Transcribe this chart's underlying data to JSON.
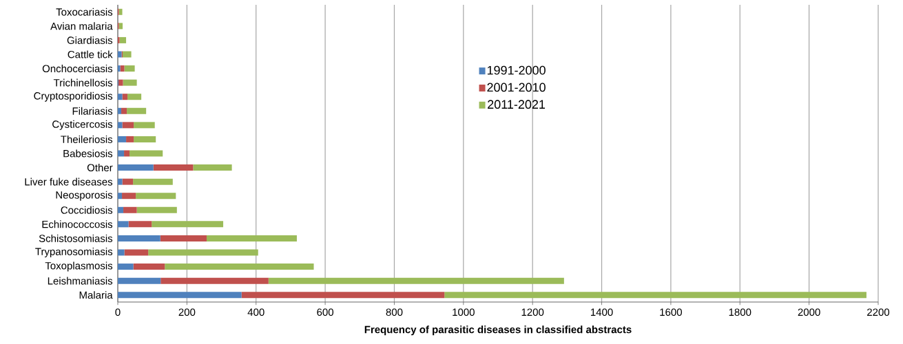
{
  "chart_data": {
    "type": "bar",
    "orientation": "horizontal",
    "stacked": true,
    "xlabel": "Frequency of parasitic diseases in classified abstracts",
    "categories": [
      "Toxocariasis",
      "Avian malaria",
      "Giardiasis",
      "Cattle tick",
      "Onchocerciasis",
      "Trichinellosis",
      "Cryptosporidiosis",
      "Filariasis",
      "Cysticercosis",
      "Theileriosis",
      "Babesiosis",
      "Other",
      "Liver fuke diseases",
      "Neosporosis",
      "Coccidiosis",
      "Echinococcosis",
      "Schistosomiasis",
      "Trypanosomiasis",
      "Toxoplasmosis",
      "Leishmaniasis",
      "Malaria"
    ],
    "series": [
      {
        "name": "1991-2000",
        "color": "#4f81bd",
        "values": [
          0,
          0,
          0,
          11,
          7,
          2,
          13,
          10,
          13,
          24,
          18,
          103,
          13,
          12,
          16,
          31,
          123,
          19,
          45,
          124,
          358
        ]
      },
      {
        "name": "2001-2010",
        "color": "#c0504d",
        "values": [
          3,
          3,
          5,
          3,
          12,
          13,
          15,
          16,
          33,
          22,
          16,
          115,
          31,
          40,
          39,
          67,
          134,
          69,
          91,
          312,
          587
        ]
      },
      {
        "name": "2011-2021",
        "color": "#9bbb59",
        "values": [
          10,
          11,
          19,
          25,
          30,
          40,
          40,
          56,
          61,
          64,
          96,
          112,
          115,
          116,
          116,
          207,
          261,
          318,
          431,
          855,
          1221
        ]
      }
    ],
    "xlim": [
      0,
      2200
    ],
    "xticks": [
      0,
      200,
      400,
      600,
      800,
      1000,
      1200,
      1400,
      1600,
      1800,
      2000,
      2200
    ],
    "grid": "x",
    "legend": "center"
  }
}
